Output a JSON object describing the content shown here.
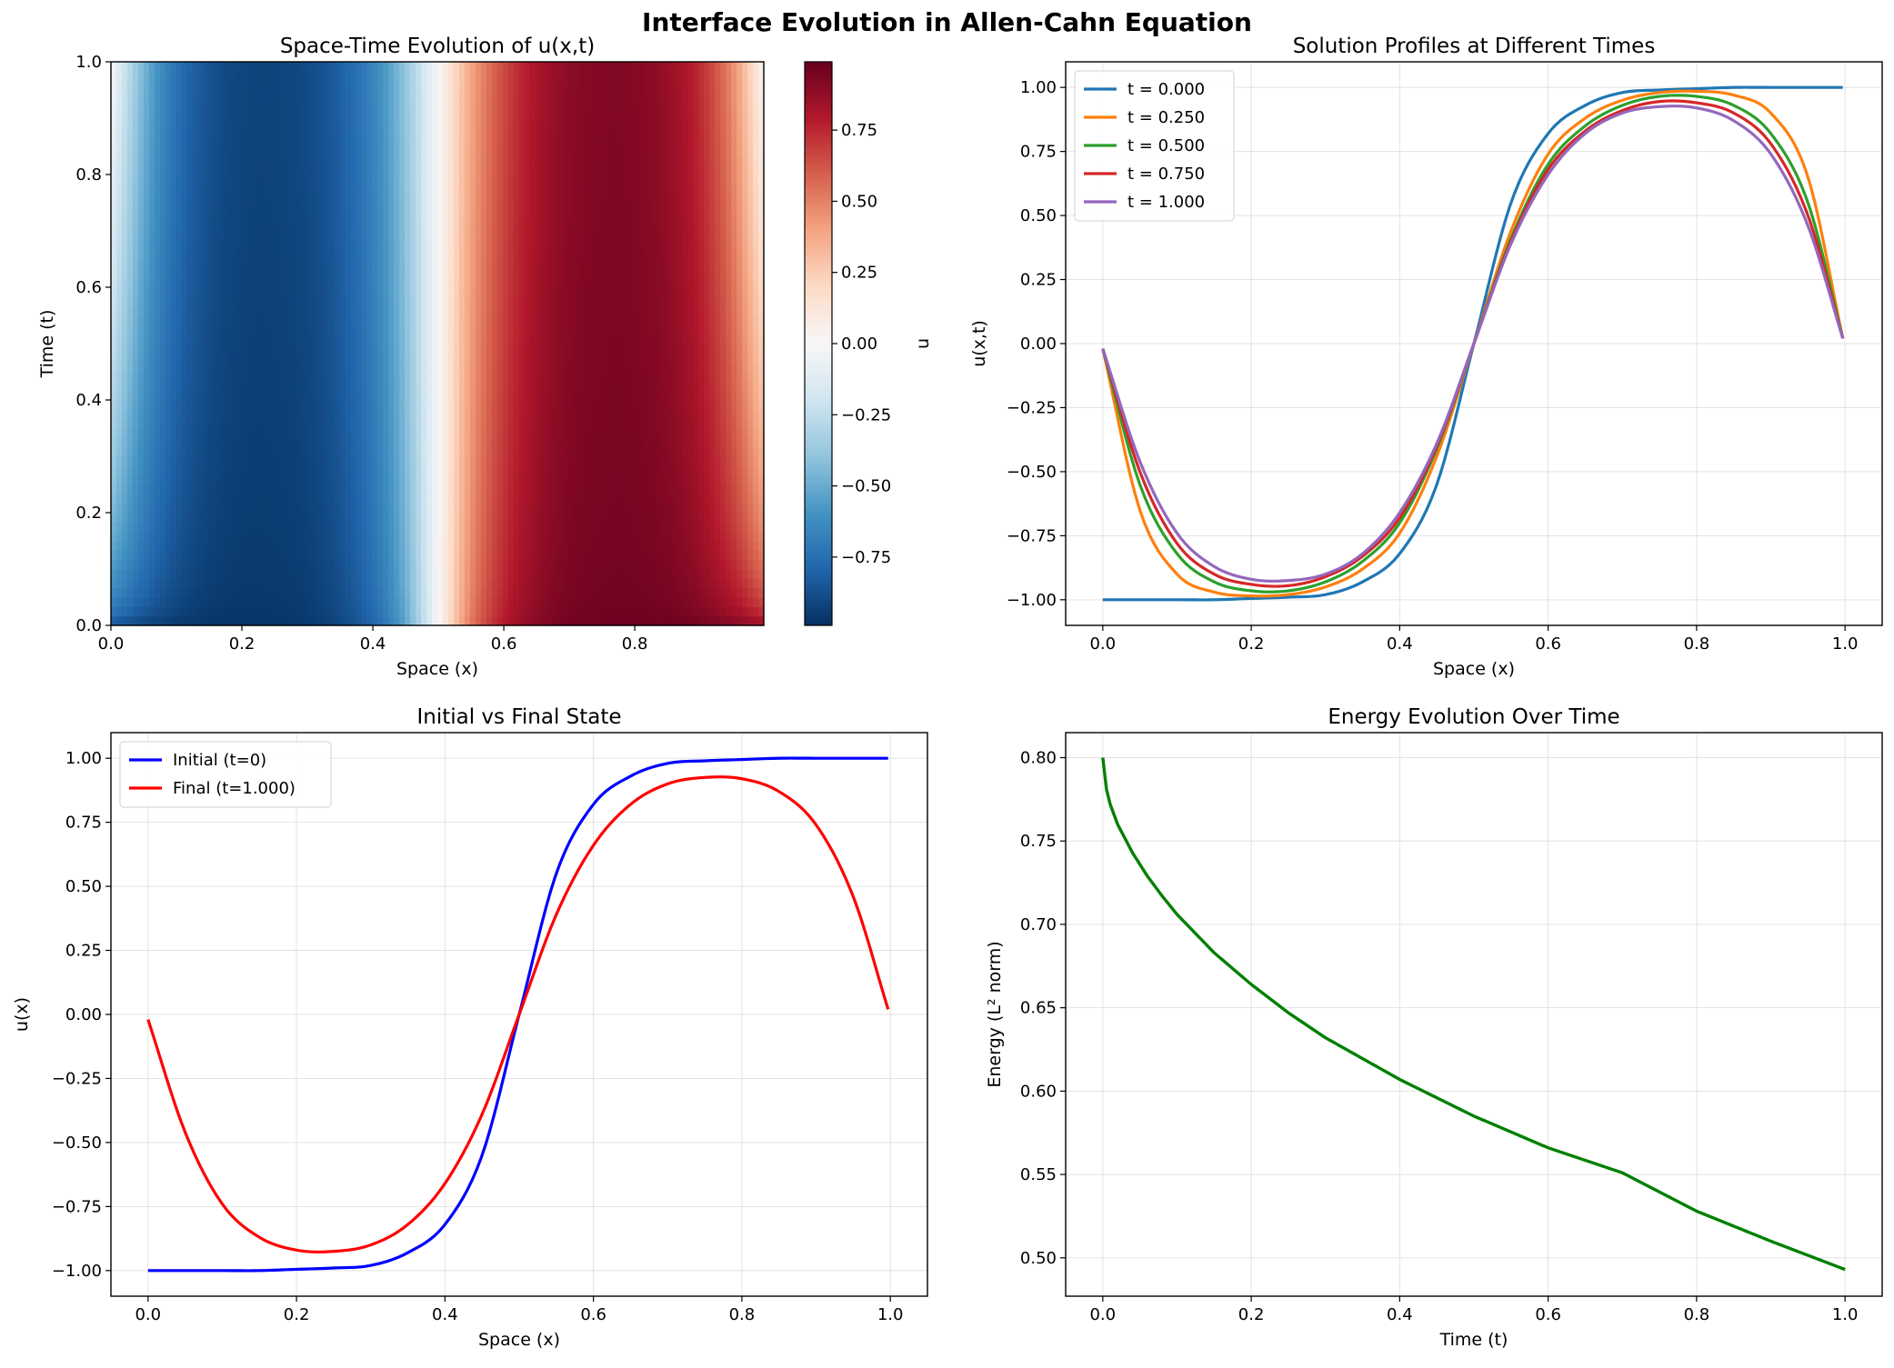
{
  "figure": {
    "title": "Interface Evolution in Allen-Cahn Equation"
  },
  "chart_data": [
    {
      "type": "heatmap",
      "title": "Space-Time Evolution of u(x,t)",
      "xlabel": "Space (x)",
      "ylabel": "Time (t)",
      "xlim": [
        0,
        0.997
      ],
      "ylim": [
        0,
        1
      ],
      "x_ticks": [
        "0.0",
        "0.2",
        "0.4",
        "0.6",
        "0.8"
      ],
      "x_tick_values": [
        0,
        0.2,
        0.4,
        0.6,
        0.8
      ],
      "y_ticks": [
        "0.0",
        "0.2",
        "0.4",
        "0.6",
        "0.8",
        "1.0"
      ],
      "y_tick_values": [
        0,
        0.2,
        0.4,
        0.6,
        0.8,
        1.0
      ],
      "colormap": "RdBu_r",
      "value_range": [
        -0.99,
        0.99
      ],
      "colorbar": {
        "label": "u",
        "ticks": [
          "−0.75",
          "−0.50",
          "−0.25",
          "0.00",
          "0.25",
          "0.50",
          "0.75"
        ],
        "tick_values": [
          -0.75,
          -0.5,
          -0.25,
          0,
          0.25,
          0.5,
          0.75
        ]
      },
      "profiles": [
        {
          "t": 0.0,
          "x": [
            0,
            0.05,
            0.1,
            0.15,
            0.2,
            0.25,
            0.3,
            0.35,
            0.4,
            0.45,
            0.5,
            0.55,
            0.6,
            0.65,
            0.7,
            0.75,
            0.8,
            0.85,
            0.9,
            0.95,
            0.997
          ],
          "u": [
            -1.0,
            -1.0,
            -1.0,
            -1.0,
            -0.995,
            -0.99,
            -0.98,
            -0.93,
            -0.82,
            -0.55,
            0.0,
            0.55,
            0.82,
            0.93,
            0.98,
            0.99,
            0.995,
            1.0,
            1.0,
            1.0,
            1.0
          ]
        },
        {
          "t": 0.25,
          "x": [
            0,
            0.05,
            0.1,
            0.15,
            0.2,
            0.25,
            0.3,
            0.35,
            0.4,
            0.45,
            0.5,
            0.55,
            0.6,
            0.65,
            0.7,
            0.75,
            0.8,
            0.85,
            0.9,
            0.95,
            0.997
          ],
          "u": [
            -0.02,
            -0.65,
            -0.9,
            -0.97,
            -0.985,
            -0.98,
            -0.95,
            -0.88,
            -0.74,
            -0.44,
            0.0,
            0.44,
            0.74,
            0.88,
            0.95,
            0.98,
            0.985,
            0.97,
            0.9,
            0.65,
            0.02
          ]
        },
        {
          "t": 0.5,
          "x": [
            0,
            0.05,
            0.1,
            0.15,
            0.2,
            0.25,
            0.3,
            0.35,
            0.4,
            0.45,
            0.5,
            0.55,
            0.6,
            0.65,
            0.7,
            0.75,
            0.8,
            0.85,
            0.9,
            0.95,
            0.997
          ],
          "u": [
            -0.02,
            -0.55,
            -0.82,
            -0.93,
            -0.965,
            -0.965,
            -0.93,
            -0.85,
            -0.7,
            -0.41,
            0.0,
            0.41,
            0.7,
            0.85,
            0.93,
            0.965,
            0.965,
            0.93,
            0.82,
            0.55,
            0.02
          ]
        },
        {
          "t": 0.75,
          "x": [
            0,
            0.05,
            0.1,
            0.15,
            0.2,
            0.25,
            0.3,
            0.35,
            0.4,
            0.45,
            0.5,
            0.55,
            0.6,
            0.65,
            0.7,
            0.75,
            0.8,
            0.85,
            0.9,
            0.95,
            0.997
          ],
          "u": [
            -0.02,
            -0.5,
            -0.78,
            -0.9,
            -0.94,
            -0.945,
            -0.91,
            -0.83,
            -0.68,
            -0.4,
            0.0,
            0.4,
            0.68,
            0.83,
            0.91,
            0.945,
            0.94,
            0.9,
            0.78,
            0.5,
            0.02
          ]
        },
        {
          "t": 1.0,
          "x": [
            0,
            0.05,
            0.1,
            0.15,
            0.2,
            0.25,
            0.3,
            0.35,
            0.4,
            0.45,
            0.5,
            0.55,
            0.6,
            0.65,
            0.7,
            0.75,
            0.8,
            0.85,
            0.9,
            0.95,
            0.997
          ],
          "u": [
            -0.02,
            -0.46,
            -0.74,
            -0.87,
            -0.92,
            -0.925,
            -0.9,
            -0.82,
            -0.66,
            -0.39,
            0.0,
            0.39,
            0.66,
            0.82,
            0.9,
            0.925,
            0.92,
            0.87,
            0.74,
            0.46,
            0.02
          ]
        }
      ]
    },
    {
      "type": "line",
      "title": "Solution Profiles at Different Times",
      "xlabel": "Space (x)",
      "ylabel": "u(x,t)",
      "xlim": [
        -0.05,
        1.05
      ],
      "ylim": [
        -1.1,
        1.1
      ],
      "x_ticks": [
        "0.0",
        "0.2",
        "0.4",
        "0.6",
        "0.8",
        "1.0"
      ],
      "x_tick_values": [
        0,
        0.2,
        0.4,
        0.6,
        0.8,
        1.0
      ],
      "y_ticks": [
        "−1.00",
        "−0.75",
        "−0.50",
        "−0.25",
        "0.00",
        "0.25",
        "0.50",
        "0.75",
        "1.00"
      ],
      "y_tick_values": [
        -1,
        -0.75,
        -0.5,
        -0.25,
        0,
        0.25,
        0.5,
        0.75,
        1
      ],
      "grid": true,
      "legend": "top-left",
      "x": [
        0,
        0.05,
        0.1,
        0.15,
        0.2,
        0.25,
        0.3,
        0.35,
        0.4,
        0.45,
        0.5,
        0.55,
        0.6,
        0.65,
        0.7,
        0.75,
        0.8,
        0.85,
        0.9,
        0.95,
        0.997
      ],
      "series": [
        {
          "name": "t = 0.000",
          "color": "#1f77b4",
          "values": [
            -1.0,
            -1.0,
            -1.0,
            -1.0,
            -0.995,
            -0.99,
            -0.98,
            -0.93,
            -0.82,
            -0.55,
            0.0,
            0.55,
            0.82,
            0.93,
            0.98,
            0.99,
            0.995,
            1.0,
            1.0,
            1.0,
            1.0
          ]
        },
        {
          "name": "t = 0.250",
          "color": "#ff7f0e",
          "values": [
            -0.02,
            -0.65,
            -0.9,
            -0.97,
            -0.985,
            -0.98,
            -0.95,
            -0.88,
            -0.74,
            -0.44,
            0.0,
            0.44,
            0.74,
            0.88,
            0.95,
            0.98,
            0.985,
            0.97,
            0.9,
            0.65,
            0.02
          ]
        },
        {
          "name": "t = 0.500",
          "color": "#2ca02c",
          "values": [
            -0.02,
            -0.55,
            -0.82,
            -0.93,
            -0.965,
            -0.965,
            -0.93,
            -0.85,
            -0.7,
            -0.41,
            0.0,
            0.41,
            0.7,
            0.85,
            0.93,
            0.965,
            0.965,
            0.93,
            0.82,
            0.55,
            0.02
          ]
        },
        {
          "name": "t = 0.750",
          "color": "#d62728",
          "values": [
            -0.02,
            -0.5,
            -0.78,
            -0.9,
            -0.94,
            -0.945,
            -0.91,
            -0.83,
            -0.68,
            -0.4,
            0.0,
            0.4,
            0.68,
            0.83,
            0.91,
            0.945,
            0.94,
            0.9,
            0.78,
            0.5,
            0.02
          ]
        },
        {
          "name": "t = 1.000",
          "color": "#9467bd",
          "values": [
            -0.02,
            -0.46,
            -0.74,
            -0.87,
            -0.92,
            -0.925,
            -0.9,
            -0.82,
            -0.66,
            -0.39,
            0.0,
            0.39,
            0.66,
            0.82,
            0.9,
            0.925,
            0.92,
            0.87,
            0.74,
            0.46,
            0.02
          ]
        }
      ]
    },
    {
      "type": "line",
      "title": "Initial vs Final State",
      "xlabel": "Space (x)",
      "ylabel": "u(x)",
      "xlim": [
        -0.05,
        1.05
      ],
      "ylim": [
        -1.1,
        1.1
      ],
      "x_ticks": [
        "0.0",
        "0.2",
        "0.4",
        "0.6",
        "0.8",
        "1.0"
      ],
      "x_tick_values": [
        0,
        0.2,
        0.4,
        0.6,
        0.8,
        1.0
      ],
      "y_ticks": [
        "−1.00",
        "−0.75",
        "−0.50",
        "−0.25",
        "0.00",
        "0.25",
        "0.50",
        "0.75",
        "1.00"
      ],
      "y_tick_values": [
        -1,
        -0.75,
        -0.5,
        -0.25,
        0,
        0.25,
        0.5,
        0.75,
        1
      ],
      "grid": true,
      "legend": "top-left",
      "x": [
        0,
        0.05,
        0.1,
        0.15,
        0.2,
        0.25,
        0.3,
        0.35,
        0.4,
        0.45,
        0.5,
        0.55,
        0.6,
        0.65,
        0.7,
        0.75,
        0.8,
        0.85,
        0.9,
        0.95,
        0.997
      ],
      "series": [
        {
          "name": "Initial (t=0)",
          "color": "#0000ff",
          "values": [
            -1.0,
            -1.0,
            -1.0,
            -1.0,
            -0.995,
            -0.99,
            -0.98,
            -0.93,
            -0.82,
            -0.55,
            0.0,
            0.55,
            0.82,
            0.93,
            0.98,
            0.99,
            0.995,
            1.0,
            1.0,
            1.0,
            1.0
          ]
        },
        {
          "name": "Final (t=1.000)",
          "color": "#ff0000",
          "values": [
            -0.02,
            -0.46,
            -0.74,
            -0.87,
            -0.92,
            -0.925,
            -0.9,
            -0.82,
            -0.66,
            -0.39,
            0.0,
            0.39,
            0.66,
            0.82,
            0.9,
            0.925,
            0.92,
            0.87,
            0.74,
            0.46,
            0.02
          ]
        }
      ]
    },
    {
      "type": "line",
      "title": "Energy Evolution Over Time",
      "xlabel": "Time (t)",
      "ylabel": "Energy (L² norm)",
      "xlim": [
        -0.05,
        1.05
      ],
      "ylim": [
        0.477,
        0.815
      ],
      "x_ticks": [
        "0.0",
        "0.2",
        "0.4",
        "0.6",
        "0.8",
        "1.0"
      ],
      "x_tick_values": [
        0,
        0.2,
        0.4,
        0.6,
        0.8,
        1.0
      ],
      "y_ticks": [
        "0.50",
        "0.55",
        "0.60",
        "0.65",
        "0.70",
        "0.75",
        "0.80"
      ],
      "y_tick_values": [
        0.5,
        0.55,
        0.6,
        0.65,
        0.7,
        0.75,
        0.8
      ],
      "grid": true,
      "x": [
        0,
        0.005,
        0.01,
        0.02,
        0.04,
        0.06,
        0.08,
        0.1,
        0.15,
        0.2,
        0.25,
        0.3,
        0.4,
        0.5,
        0.6,
        0.7,
        0.8,
        0.9,
        1.0
      ],
      "series": [
        {
          "color": "#008000",
          "values": [
            0.8,
            0.781,
            0.772,
            0.76,
            0.743,
            0.729,
            0.717,
            0.706,
            0.683,
            0.664,
            0.647,
            0.632,
            0.607,
            0.585,
            0.566,
            0.551,
            0.528,
            0.51,
            0.493
          ]
        }
      ]
    }
  ]
}
